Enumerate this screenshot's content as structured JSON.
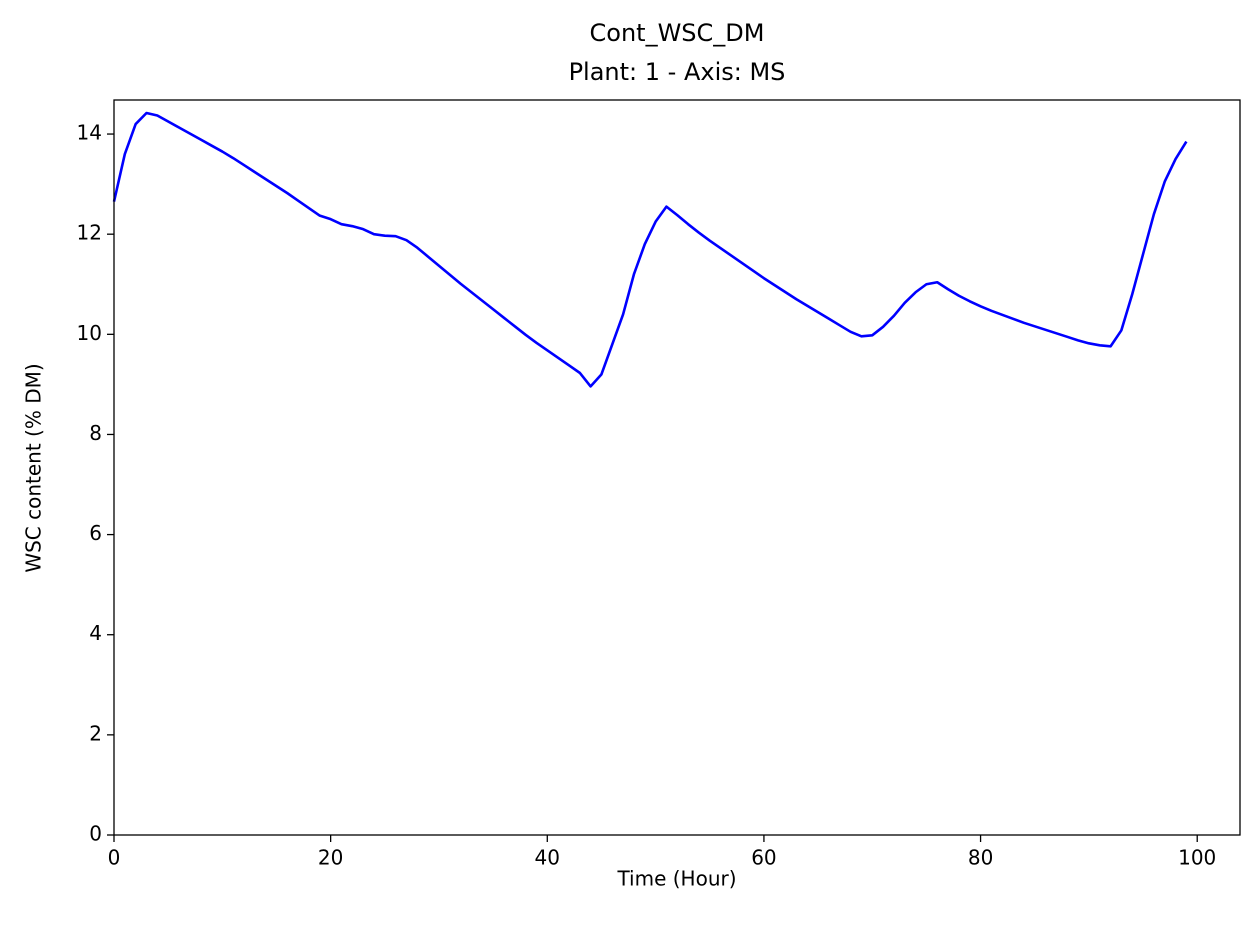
{
  "chart_data": {
    "type": "line",
    "title": "Cont_WSC_DM",
    "subtitle": "Plant: 1 - Axis: MS",
    "x_label": "Time (Hour)",
    "y_label": "WSC content (% DM)",
    "x": [
      0,
      1,
      2,
      3,
      4,
      5,
      6,
      7,
      8,
      9,
      10,
      11,
      12,
      13,
      14,
      15,
      16,
      17,
      18,
      19,
      20,
      21,
      22,
      23,
      24,
      25,
      26,
      27,
      28,
      29,
      30,
      31,
      32,
      33,
      34,
      35,
      36,
      37,
      38,
      39,
      40,
      41,
      42,
      43,
      44,
      45,
      46,
      47,
      48,
      49,
      50,
      51,
      52,
      53,
      54,
      55,
      56,
      57,
      58,
      59,
      60,
      61,
      62,
      63,
      64,
      65,
      66,
      67,
      68,
      69,
      70,
      71,
      72,
      73,
      74,
      75,
      76,
      77,
      78,
      79,
      80,
      81,
      82,
      83,
      84,
      85,
      86,
      87,
      88,
      89,
      90,
      91,
      92,
      93,
      94,
      95,
      96,
      97,
      98,
      99
    ],
    "series": [
      {
        "name": "Cont_WSC_DM",
        "color": "#0000ff",
        "values": [
          12.65,
          13.6,
          14.2,
          14.42,
          14.37,
          14.25,
          14.13,
          14.01,
          13.89,
          13.77,
          13.65,
          13.52,
          13.38,
          13.24,
          13.1,
          12.96,
          12.82,
          12.67,
          12.52,
          12.37,
          12.3,
          12.2,
          12.16,
          12.1,
          12.0,
          11.97,
          11.96,
          11.88,
          11.73,
          11.55,
          11.37,
          11.19,
          11.01,
          10.84,
          10.67,
          10.5,
          10.33,
          10.16,
          9.99,
          9.83,
          9.68,
          9.53,
          9.38,
          9.23,
          8.96,
          9.2,
          9.8,
          10.4,
          11.2,
          11.8,
          12.25,
          12.55,
          12.38,
          12.2,
          12.03,
          11.87,
          11.72,
          11.57,
          11.42,
          11.27,
          11.12,
          10.98,
          10.84,
          10.7,
          10.57,
          10.44,
          10.31,
          10.18,
          10.05,
          9.96,
          9.98,
          10.15,
          10.37,
          10.63,
          10.84,
          11.0,
          11.04,
          10.9,
          10.77,
          10.66,
          10.56,
          10.47,
          10.39,
          10.31,
          10.23,
          10.16,
          10.09,
          10.02,
          9.95,
          9.88,
          9.82,
          9.78,
          9.76,
          10.08,
          10.8,
          11.6,
          12.4,
          13.05,
          13.5,
          13.85
        ]
      }
    ],
    "xlim": [
      0,
      103.95
    ],
    "ylim": [
      0,
      14.68
    ],
    "xticks": [
      0,
      20,
      40,
      60,
      80,
      100
    ],
    "yticks": [
      0,
      2,
      4,
      6,
      8,
      10,
      12,
      14
    ],
    "grid": false
  }
}
